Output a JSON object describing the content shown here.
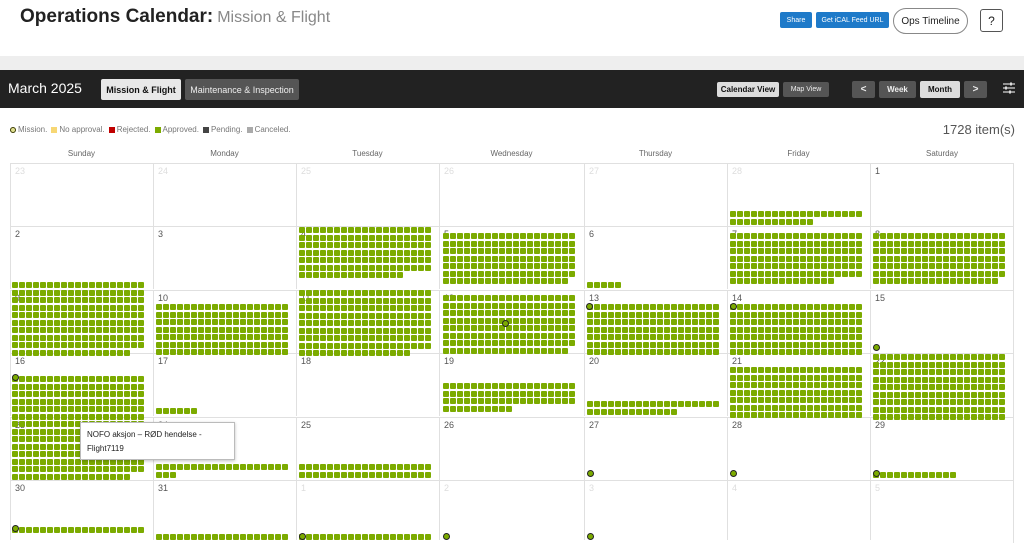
{
  "header": {
    "title": "Operations Calendar:",
    "subtitle": "Mission & Flight",
    "share_label": "Share",
    "ical_label": "Get iCAL Feed URL",
    "ops_label": "Ops Timeline",
    "help_label": "?"
  },
  "toolbar": {
    "month": "March 2025",
    "tab_active": "Mission & Flight",
    "tab_inactive": "Maintenance & Inspection",
    "calendar_view": "Calendar View",
    "map_view": "Map View",
    "prev": "<",
    "week": "Week",
    "month_btn": "Month",
    "next": ">"
  },
  "legend": [
    {
      "label": "Mission.",
      "color": "#e0e090"
    },
    {
      "label": "No approval.",
      "color": "#f7d774"
    },
    {
      "label": "Rejected.",
      "color": "#c00000"
    },
    {
      "label": "Approved.",
      "color": "#7cab00"
    },
    {
      "label": "Pending.",
      "color": "#444444"
    },
    {
      "label": "Canceled.",
      "color": "#aaaaaa"
    }
  ],
  "item_count": "1728 item(s)",
  "weekdays": [
    "Sunday",
    "Monday",
    "Tuesday",
    "Wednesday",
    "Thursday",
    "Friday",
    "Saturday"
  ],
  "weeks": [
    [
      "23",
      "24",
      "25",
      "26",
      "27",
      "28",
      "1"
    ],
    [
      "2",
      "3",
      "4",
      "5",
      "6",
      "7",
      "8"
    ],
    [
      "9",
      "10",
      "11",
      "12",
      "13",
      "14",
      "15"
    ],
    [
      "16",
      "17",
      "18",
      "19",
      "20",
      "21",
      "22"
    ],
    [
      "23",
      "24",
      "25",
      "26",
      "27",
      "28",
      "29"
    ],
    [
      "30",
      "31",
      "1",
      "2",
      "3",
      "4",
      "5"
    ]
  ],
  "tooltip": {
    "line1": "NOFO aksjon – RØD hendelse -",
    "line2": "Flight7119"
  },
  "colors": {
    "approved": "#7cab00",
    "accent": "#1e7ac9"
  }
}
